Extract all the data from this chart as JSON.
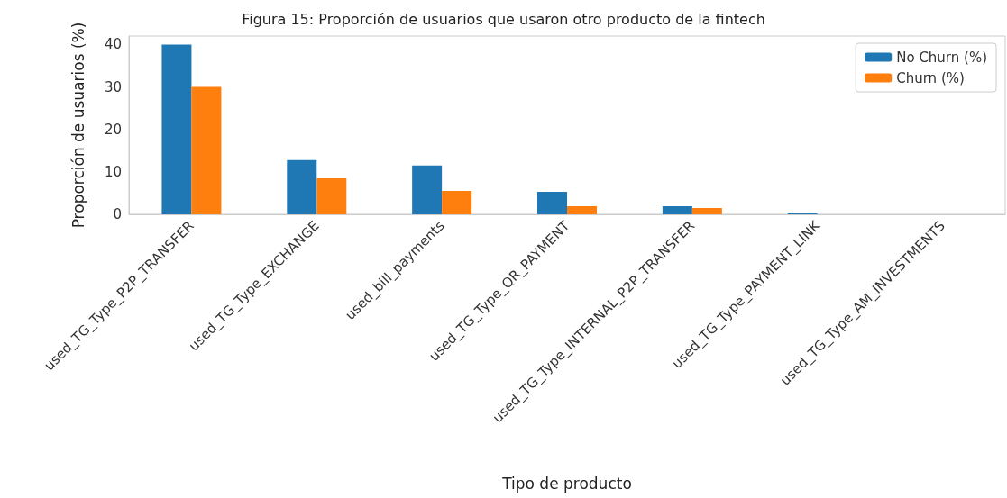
{
  "chart_data": {
    "type": "bar",
    "title": "Figura 15: Proporción de usuarios que usaron otro producto de la fintech",
    "xlabel": "Tipo de producto",
    "ylabel": "Proporción de usuarios (%)",
    "categories": [
      "used_TG_Type_P2P_TRANSFER",
      "used_TG_Type_EXCHANGE",
      "used_bill_payments",
      "used_TG_Type_QR_PAYMENT",
      "used_TG_Type_INTERNAL_P2P_TRANSFER",
      "used_TG_Type_PAYMENT_LINK",
      "used_TG_Type_AM_INVESTMENTS"
    ],
    "series": [
      {
        "name": "No Churn (%)",
        "color": "#1f77b4",
        "values": [
          40.0,
          12.8,
          11.5,
          5.3,
          1.9,
          0.2,
          0
        ]
      },
      {
        "name": "Churn (%)",
        "color": "#ff7f0e",
        "values": [
          30.0,
          8.5,
          5.5,
          1.9,
          1.5,
          null,
          0
        ]
      }
    ],
    "ylim": [
      0,
      42
    ],
    "yticks": [
      0,
      10,
      20,
      30,
      40
    ],
    "grid": false,
    "legend": "top right"
  }
}
